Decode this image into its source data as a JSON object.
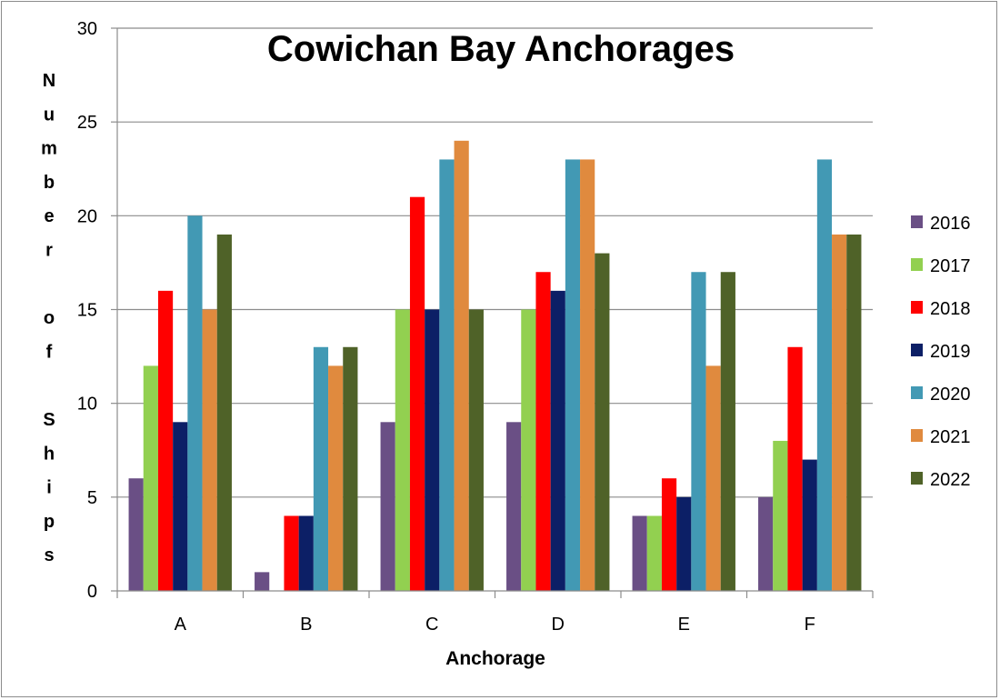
{
  "chart_data": {
    "type": "bar",
    "title": "Cowichan Bay Anchorages",
    "xlabel": "Anchorage",
    "ylabel": "Number of Ships",
    "categories": [
      "A",
      "B",
      "C",
      "D",
      "E",
      "F"
    ],
    "ylim": [
      0,
      30
    ],
    "yticks": [
      0,
      5,
      10,
      15,
      20,
      25,
      30
    ],
    "grid": true,
    "legend_position": "right",
    "series": [
      {
        "name": "2016",
        "color": "#6a4f85",
        "values": [
          6,
          1,
          9,
          9,
          4,
          5
        ]
      },
      {
        "name": "2017",
        "color": "#92d050",
        "values": [
          12,
          0,
          15,
          15,
          4,
          8
        ]
      },
      {
        "name": "2018",
        "color": "#ff0000",
        "values": [
          16,
          4,
          21,
          17,
          6,
          13
        ]
      },
      {
        "name": "2019",
        "color": "#0c1f66",
        "values": [
          9,
          4,
          15,
          16,
          5,
          7
        ]
      },
      {
        "name": "2020",
        "color": "#4299b4",
        "values": [
          20,
          13,
          23,
          23,
          17,
          23
        ]
      },
      {
        "name": "2021",
        "color": "#e08a3e",
        "values": [
          15,
          12,
          24,
          23,
          12,
          19
        ]
      },
      {
        "name": "2022",
        "color": "#4f6228",
        "values": [
          19,
          13,
          15,
          18,
          17,
          19
        ]
      }
    ]
  }
}
